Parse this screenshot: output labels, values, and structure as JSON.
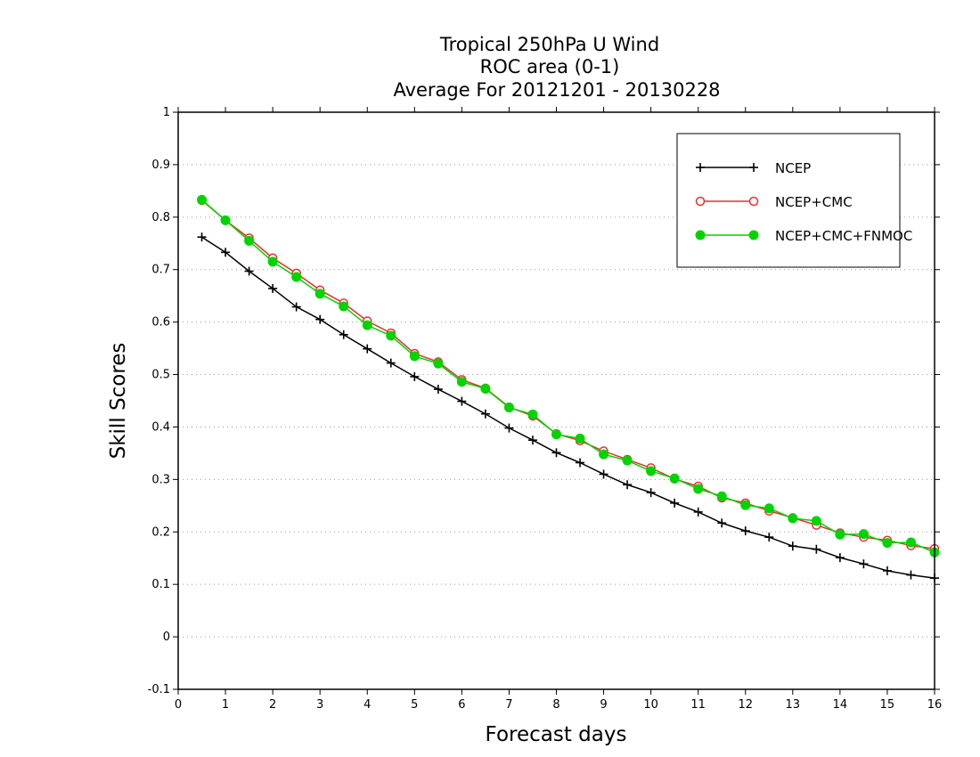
{
  "chart_data": {
    "type": "line",
    "title": [
      "Tropical 250hPa U Wind",
      "ROC area (0-1)",
      "Average For 20121201 - 20130228"
    ],
    "xlabel": "Forecast days",
    "ylabel": "Skill Scores",
    "xlim": [
      0,
      16
    ],
    "ylim": [
      -0.1,
      1
    ],
    "xticks": [
      "0",
      "1",
      "2",
      "3",
      "4",
      "5",
      "6",
      "7",
      "8",
      "9",
      "10",
      "11",
      "12",
      "13",
      "14",
      "15",
      "16"
    ],
    "yticks": [
      "-0.1",
      "0",
      "0.1",
      "0.2",
      "0.3",
      "0.4",
      "0.5",
      "0.6",
      "0.7",
      "0.8",
      "0.9",
      "1"
    ],
    "grid": "horizontal-dotted",
    "legend_position": "top-right",
    "x": [
      0.5,
      1,
      1.5,
      2,
      2.5,
      3,
      3.5,
      4,
      4.5,
      5,
      5.5,
      6,
      6.5,
      7,
      7.5,
      8,
      8.5,
      9,
      9.5,
      10,
      10.5,
      11,
      11.5,
      12,
      12.5,
      13,
      13.5,
      14,
      14.5,
      15,
      15.5,
      16
    ],
    "series": [
      {
        "name": "NCEP",
        "color": "#000000",
        "marker": "plus",
        "values": [
          0.762,
          0.733,
          0.697,
          0.664,
          0.629,
          0.605,
          0.576,
          0.549,
          0.522,
          0.496,
          0.472,
          0.449,
          0.425,
          0.398,
          0.375,
          0.351,
          0.332,
          0.31,
          0.29,
          0.275,
          0.255,
          0.238,
          0.217,
          0.202,
          0.19,
          0.173,
          0.167,
          0.151,
          0.139,
          0.126,
          0.118,
          0.112
        ]
      },
      {
        "name": "NCEP+CMC",
        "color": "#e83030",
        "marker": "open-circle",
        "values": [
          0.832,
          0.794,
          0.76,
          0.722,
          0.693,
          0.661,
          0.636,
          0.602,
          0.579,
          0.54,
          0.524,
          0.49,
          0.474,
          0.438,
          0.421,
          0.387,
          0.374,
          0.354,
          0.338,
          0.322,
          0.301,
          0.287,
          0.265,
          0.255,
          0.24,
          0.227,
          0.213,
          0.198,
          0.19,
          0.184,
          0.174,
          0.168
        ]
      },
      {
        "name": "NCEP+CMC+FNMOC",
        "color": "#00d400",
        "marker": "filled-circle",
        "values": [
          0.833,
          0.794,
          0.755,
          0.715,
          0.686,
          0.654,
          0.63,
          0.594,
          0.574,
          0.535,
          0.521,
          0.486,
          0.473,
          0.437,
          0.424,
          0.386,
          0.378,
          0.348,
          0.336,
          0.316,
          0.302,
          0.282,
          0.268,
          0.251,
          0.245,
          0.226,
          0.221,
          0.195,
          0.196,
          0.179,
          0.18,
          0.161
        ]
      }
    ]
  }
}
